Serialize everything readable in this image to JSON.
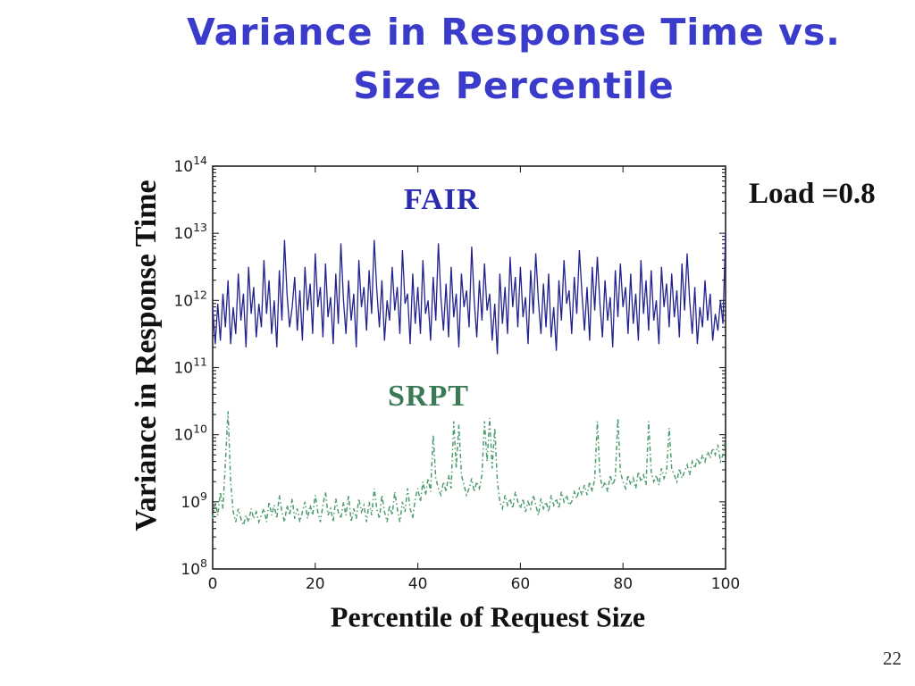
{
  "slide": {
    "title_line1": "Variance in Response Time vs.",
    "title_line2": "Size Percentile",
    "load_annotation": "Load =0.8",
    "page_number": "22"
  },
  "colors": {
    "title_blue": "#3b3bcb",
    "axis": "#222222",
    "tick_text": "#1d1d1d",
    "fair_line": "#22228e",
    "srpt_line": "#4f9c6e"
  },
  "chart_data": {
    "type": "line",
    "title": "",
    "xlabel": "Percentile of Request Size",
    "ylabel": "Variance in Response Time",
    "x_range": [
      0,
      100
    ],
    "x_step": 0.5,
    "y_scale": "log10",
    "ylim_log10": [
      8,
      14
    ],
    "xticks": [
      0,
      20,
      40,
      60,
      80,
      100
    ],
    "ytick_exponents": [
      8,
      9,
      10,
      11,
      12,
      13,
      14
    ],
    "grid": false,
    "legend": "inline-text-labels",
    "series": [
      {
        "name": "FAIR",
        "style": "solid",
        "color": "#22228e",
        "label_color": "#2b2bb0",
        "log10_values": [
          11.9,
          11.35,
          11.95,
          11.4,
          12.1,
          11.6,
          12.3,
          11.35,
          11.9,
          11.5,
          12.4,
          11.7,
          12.1,
          11.3,
          12.5,
          11.8,
          12.2,
          11.45,
          11.95,
          11.6,
          12.6,
          11.8,
          12.3,
          11.5,
          12.0,
          11.3,
          12.45,
          11.7,
          12.9,
          12.1,
          11.6,
          11.9,
          12.35,
          11.55,
          12.15,
          11.4,
          12.5,
          11.85,
          12.25,
          11.5,
          12.7,
          11.9,
          12.2,
          11.45,
          12.55,
          11.75,
          12.05,
          11.35,
          12.4,
          11.65,
          12.85,
          12.0,
          11.5,
          12.3,
          11.7,
          12.1,
          11.3,
          12.6,
          11.9,
          12.2,
          11.55,
          12.45,
          11.8,
          12.9,
          12.15,
          11.6,
          12.3,
          11.4,
          12.0,
          11.7,
          12.5,
          11.85,
          12.2,
          11.5,
          12.75,
          11.95,
          12.1,
          11.35,
          12.4,
          11.65,
          12.2,
          11.5,
          12.6,
          11.8,
          12.0,
          11.4,
          12.35,
          11.7,
          12.85,
          12.05,
          11.55,
          12.25,
          11.45,
          12.5,
          11.75,
          12.1,
          11.3,
          12.4,
          11.9,
          12.15,
          11.6,
          12.8,
          12.0,
          11.45,
          12.3,
          11.7,
          12.55,
          11.85,
          12.1,
          11.4,
          11.95,
          11.2,
          12.4,
          11.65,
          12.2,
          11.5,
          12.65,
          11.9,
          12.35,
          11.6,
          12.5,
          11.75,
          12.05,
          11.35,
          12.45,
          11.8,
          12.7,
          12.0,
          11.5,
          12.25,
          11.6,
          12.4,
          11.45,
          11.9,
          11.25,
          12.3,
          11.7,
          12.6,
          11.95,
          12.15,
          11.5,
          12.35,
          11.8,
          12.75,
          12.1,
          11.55,
          12.2,
          11.4,
          12.5,
          11.85,
          12.65,
          11.95,
          11.45,
          12.3,
          11.7,
          12.05,
          11.3,
          12.45,
          11.75,
          12.55,
          11.9,
          12.2,
          11.5,
          12.4,
          11.65,
          12.1,
          11.4,
          12.6,
          11.8,
          12.3,
          11.55,
          12.45,
          11.7,
          12.0,
          11.35,
          12.5,
          11.9,
          12.25,
          11.6,
          12.4,
          11.75,
          12.15,
          11.45,
          12.55,
          11.85,
          12.7,
          12.0,
          11.5,
          12.2,
          11.35,
          11.9,
          11.6,
          12.3,
          11.7,
          12.1,
          11.4,
          11.8,
          11.55,
          12.0,
          11.65,
          13.0
        ]
      },
      {
        "name": "SRPT",
        "style": "dash-dot",
        "color": "#4f9c6e",
        "label_color": "#3a7a55",
        "log10_values": [
          8.75,
          9.0,
          8.8,
          9.15,
          8.9,
          9.6,
          10.35,
          9.3,
          8.85,
          8.7,
          8.9,
          8.75,
          8.65,
          8.8,
          8.7,
          8.9,
          8.75,
          8.85,
          8.7,
          8.8,
          8.9,
          8.7,
          9.0,
          8.8,
          8.95,
          8.75,
          9.1,
          8.85,
          8.7,
          8.95,
          8.8,
          9.05,
          8.75,
          8.9,
          8.7,
          8.85,
          9.0,
          8.75,
          8.95,
          8.8,
          9.1,
          8.85,
          8.7,
          8.95,
          9.15,
          8.8,
          8.9,
          8.7,
          9.05,
          8.85,
          8.75,
          9.0,
          8.8,
          9.1,
          8.7,
          8.9,
          8.75,
          9.05,
          8.85,
          8.95,
          8.7,
          9.0,
          8.8,
          9.2,
          8.9,
          8.75,
          9.1,
          8.85,
          8.7,
          8.95,
          8.8,
          9.15,
          8.9,
          8.7,
          9.0,
          8.85,
          9.2,
          8.9,
          8.75,
          9.05,
          9.2,
          9.0,
          9.3,
          9.1,
          9.35,
          9.15,
          10.0,
          9.35,
          9.2,
          9.1,
          9.3,
          9.15,
          9.4,
          9.2,
          10.2,
          9.5,
          10.15,
          9.4,
          9.25,
          9.1,
          9.2,
          9.35,
          9.15,
          9.3,
          9.2,
          9.4,
          10.2,
          9.6,
          10.25,
          9.5,
          10.1,
          9.3,
          9.0,
          8.9,
          9.1,
          8.95,
          9.05,
          8.9,
          9.15,
          9.0,
          8.9,
          9.05,
          8.85,
          9.0,
          8.9,
          9.1,
          8.95,
          8.8,
          9.05,
          8.9,
          9.0,
          8.85,
          9.1,
          8.95,
          9.05,
          8.9,
          9.15,
          9.0,
          9.1,
          8.95,
          9.0,
          9.15,
          9.05,
          9.2,
          9.1,
          9.25,
          9.1,
          9.3,
          9.15,
          9.35,
          10.2,
          9.4,
          9.2,
          9.3,
          9.15,
          9.4,
          9.25,
          9.35,
          10.25,
          9.45,
          9.3,
          9.2,
          9.4,
          9.25,
          9.35,
          9.2,
          9.45,
          9.3,
          9.4,
          9.25,
          10.2,
          9.45,
          9.3,
          9.4,
          9.25,
          9.5,
          9.35,
          9.45,
          10.1,
          9.5,
          9.4,
          9.3,
          9.5,
          9.35,
          9.45,
          9.55,
          9.4,
          9.6,
          9.5,
          9.65,
          9.55,
          9.7,
          9.6,
          9.75,
          9.65,
          9.8,
          9.7,
          9.85,
          9.6,
          9.7,
          9.95
        ]
      }
    ]
  }
}
